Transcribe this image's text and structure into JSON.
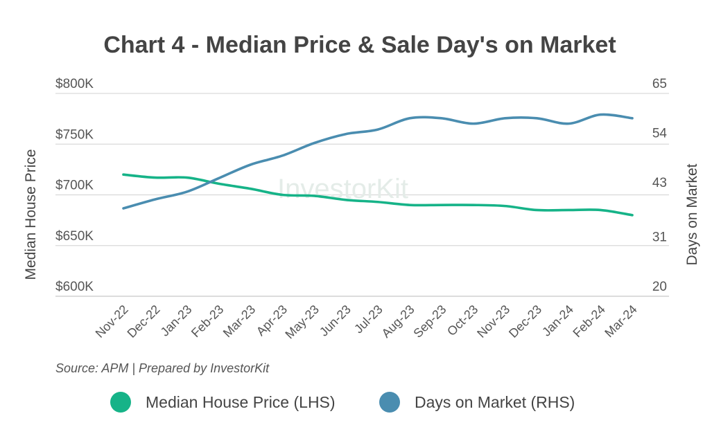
{
  "chart_data": {
    "type": "line",
    "title": "Chart 4 - Median Price & Sale Day's on Market",
    "categories": [
      "Nov-22",
      "Dec-22",
      "Jan-23",
      "Feb-23",
      "Mar-23",
      "Apr-23",
      "May-23",
      "Jun-23",
      "Jul-23",
      "Aug-23",
      "Sep-23",
      "Oct-23",
      "Nov-23",
      "Dec-23",
      "Jan-24",
      "Feb-24",
      "Mar-24"
    ],
    "ylabel_left": "Median House Price",
    "ylabel_right": "Days on Market",
    "left_axis": {
      "min": 600,
      "max": 800,
      "ticks": [
        600,
        650,
        700,
        750,
        800
      ],
      "tick_labels": [
        "$600K",
        "$650K",
        "$700K",
        "$750K",
        "$800K"
      ]
    },
    "right_axis": {
      "min": 20,
      "max": 65,
      "ticks": [
        20,
        31,
        43,
        54,
        65
      ],
      "tick_labels": [
        "20",
        "31",
        "43",
        "54",
        "65"
      ]
    },
    "series": [
      {
        "name": "Median House Price (LHS)",
        "axis": "left",
        "color": "#16b388",
        "values": [
          720,
          717,
          717,
          711,
          706,
          700,
          699,
          695,
          693,
          690,
          690,
          690,
          689,
          685,
          685,
          685,
          680
        ]
      },
      {
        "name": "Days on Market (RHS)",
        "axis": "right",
        "color": "#4a8db0",
        "values": [
          39.5,
          41.5,
          43.2,
          46.2,
          49.2,
          51.2,
          54.0,
          56.0,
          57.0,
          59.5,
          59.5,
          58.3,
          59.5,
          59.5,
          58.3,
          60.3,
          59.5
        ]
      }
    ],
    "grid": true,
    "source": "Source: APM | Prepared by InvestorKit",
    "watermark": "InvestorKit",
    "legend_position": "bottom"
  }
}
